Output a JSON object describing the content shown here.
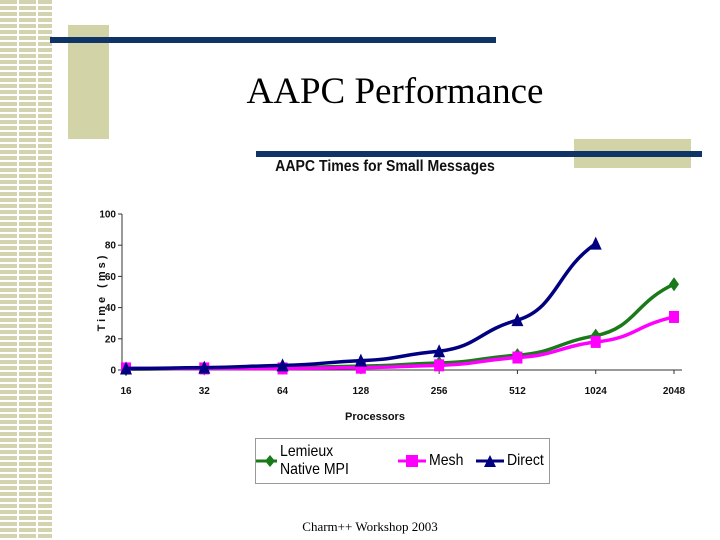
{
  "slide": {
    "title": "AAPC Performance",
    "footer": "Charm++ Workshop 2003",
    "colors": {
      "decor_block": "#d3d3a8",
      "decor_line": "#0f3566"
    }
  },
  "chart_data": {
    "type": "line",
    "title": "AAPC Times for Small Messages",
    "xlabel": "Processors",
    "ylabel": "Time (ms)",
    "ylim": [
      0,
      100
    ],
    "y_ticks": [
      0,
      20,
      40,
      60,
      80,
      100
    ],
    "categories": [
      "16",
      "32",
      "64",
      "128",
      "256",
      "512",
      "1024",
      "2048"
    ],
    "grid": false,
    "legend": "bottom",
    "series": [
      {
        "name": "Lemieux Native MPI",
        "color": "#1a7a1a",
        "marker": "diamond",
        "values": [
          0.5,
          1,
          1.5,
          2.5,
          4.5,
          9.5,
          22,
          55
        ]
      },
      {
        "name": "Mesh",
        "color": "#ff00ff",
        "marker": "square",
        "values": [
          1,
          1,
          1,
          1.5,
          3,
          8,
          18,
          34
        ]
      },
      {
        "name": "Direct",
        "color": "#000080",
        "marker": "triangle",
        "values": [
          1,
          1.5,
          3,
          6,
          12,
          32,
          81,
          null
        ]
      }
    ]
  }
}
